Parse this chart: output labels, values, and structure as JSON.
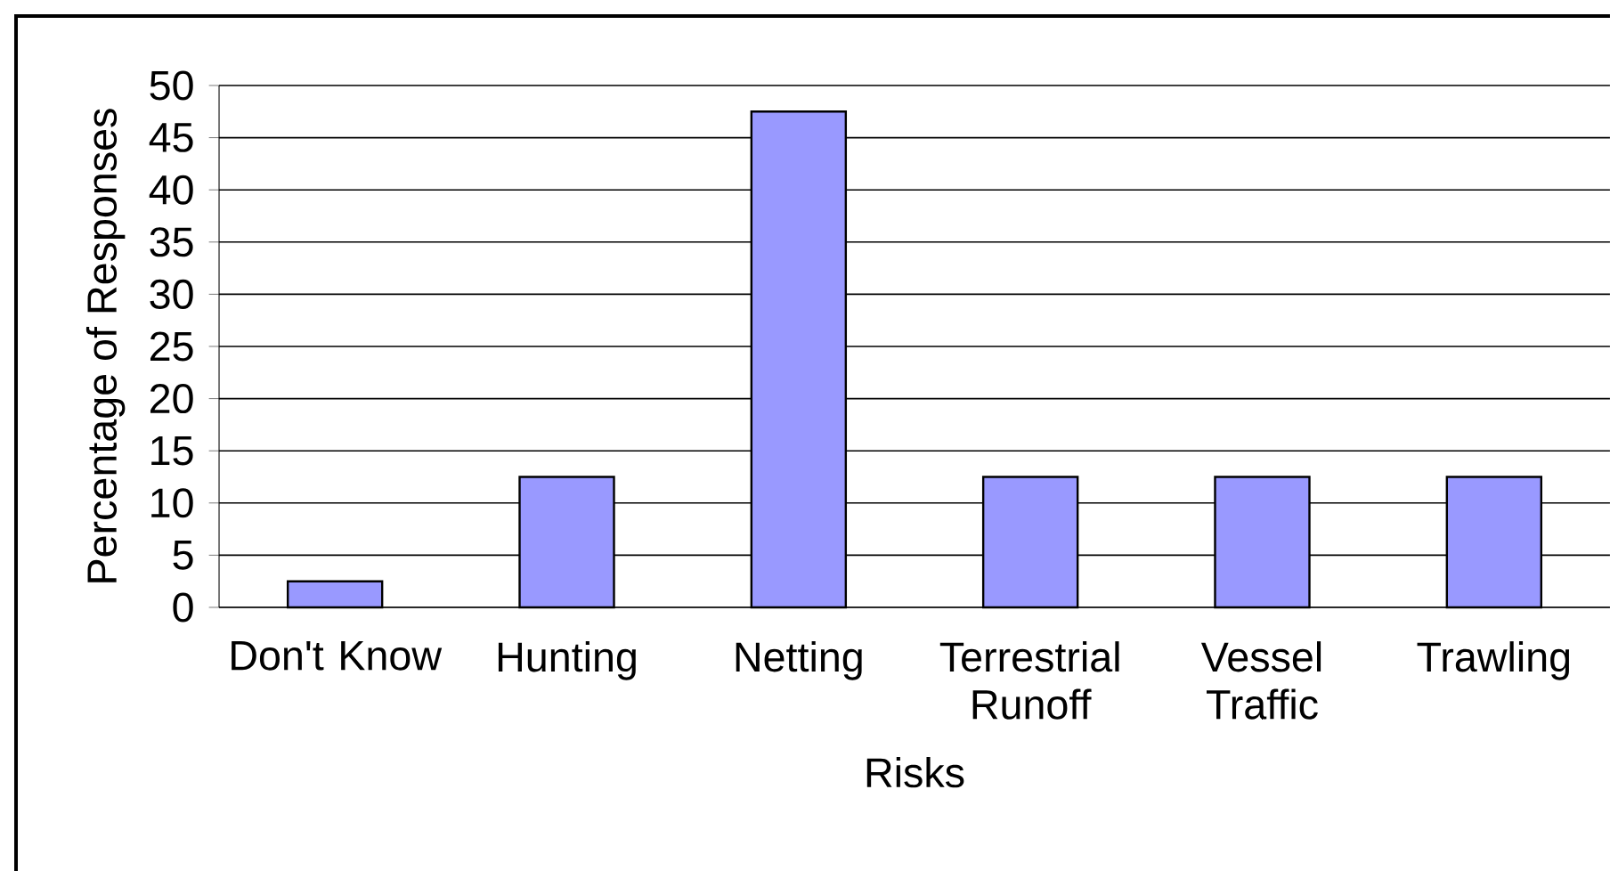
{
  "chart_data": {
    "type": "bar",
    "xlabel": "Risks",
    "ylabel": "Percentage of Responses",
    "categories": [
      "Don't Know",
      "Hunting",
      "Netting",
      "Terrestrial Runoff",
      "Vessel Traffic",
      "Trawling"
    ],
    "values": [
      2.5,
      12.5,
      47.5,
      12.5,
      12.5,
      12.5
    ],
    "color": "#9999ff",
    "ylim": [
      0,
      50
    ],
    "yticks": [
      0,
      5,
      10,
      15,
      20,
      25,
      30,
      35,
      40,
      45,
      50
    ],
    "grid": "y"
  }
}
